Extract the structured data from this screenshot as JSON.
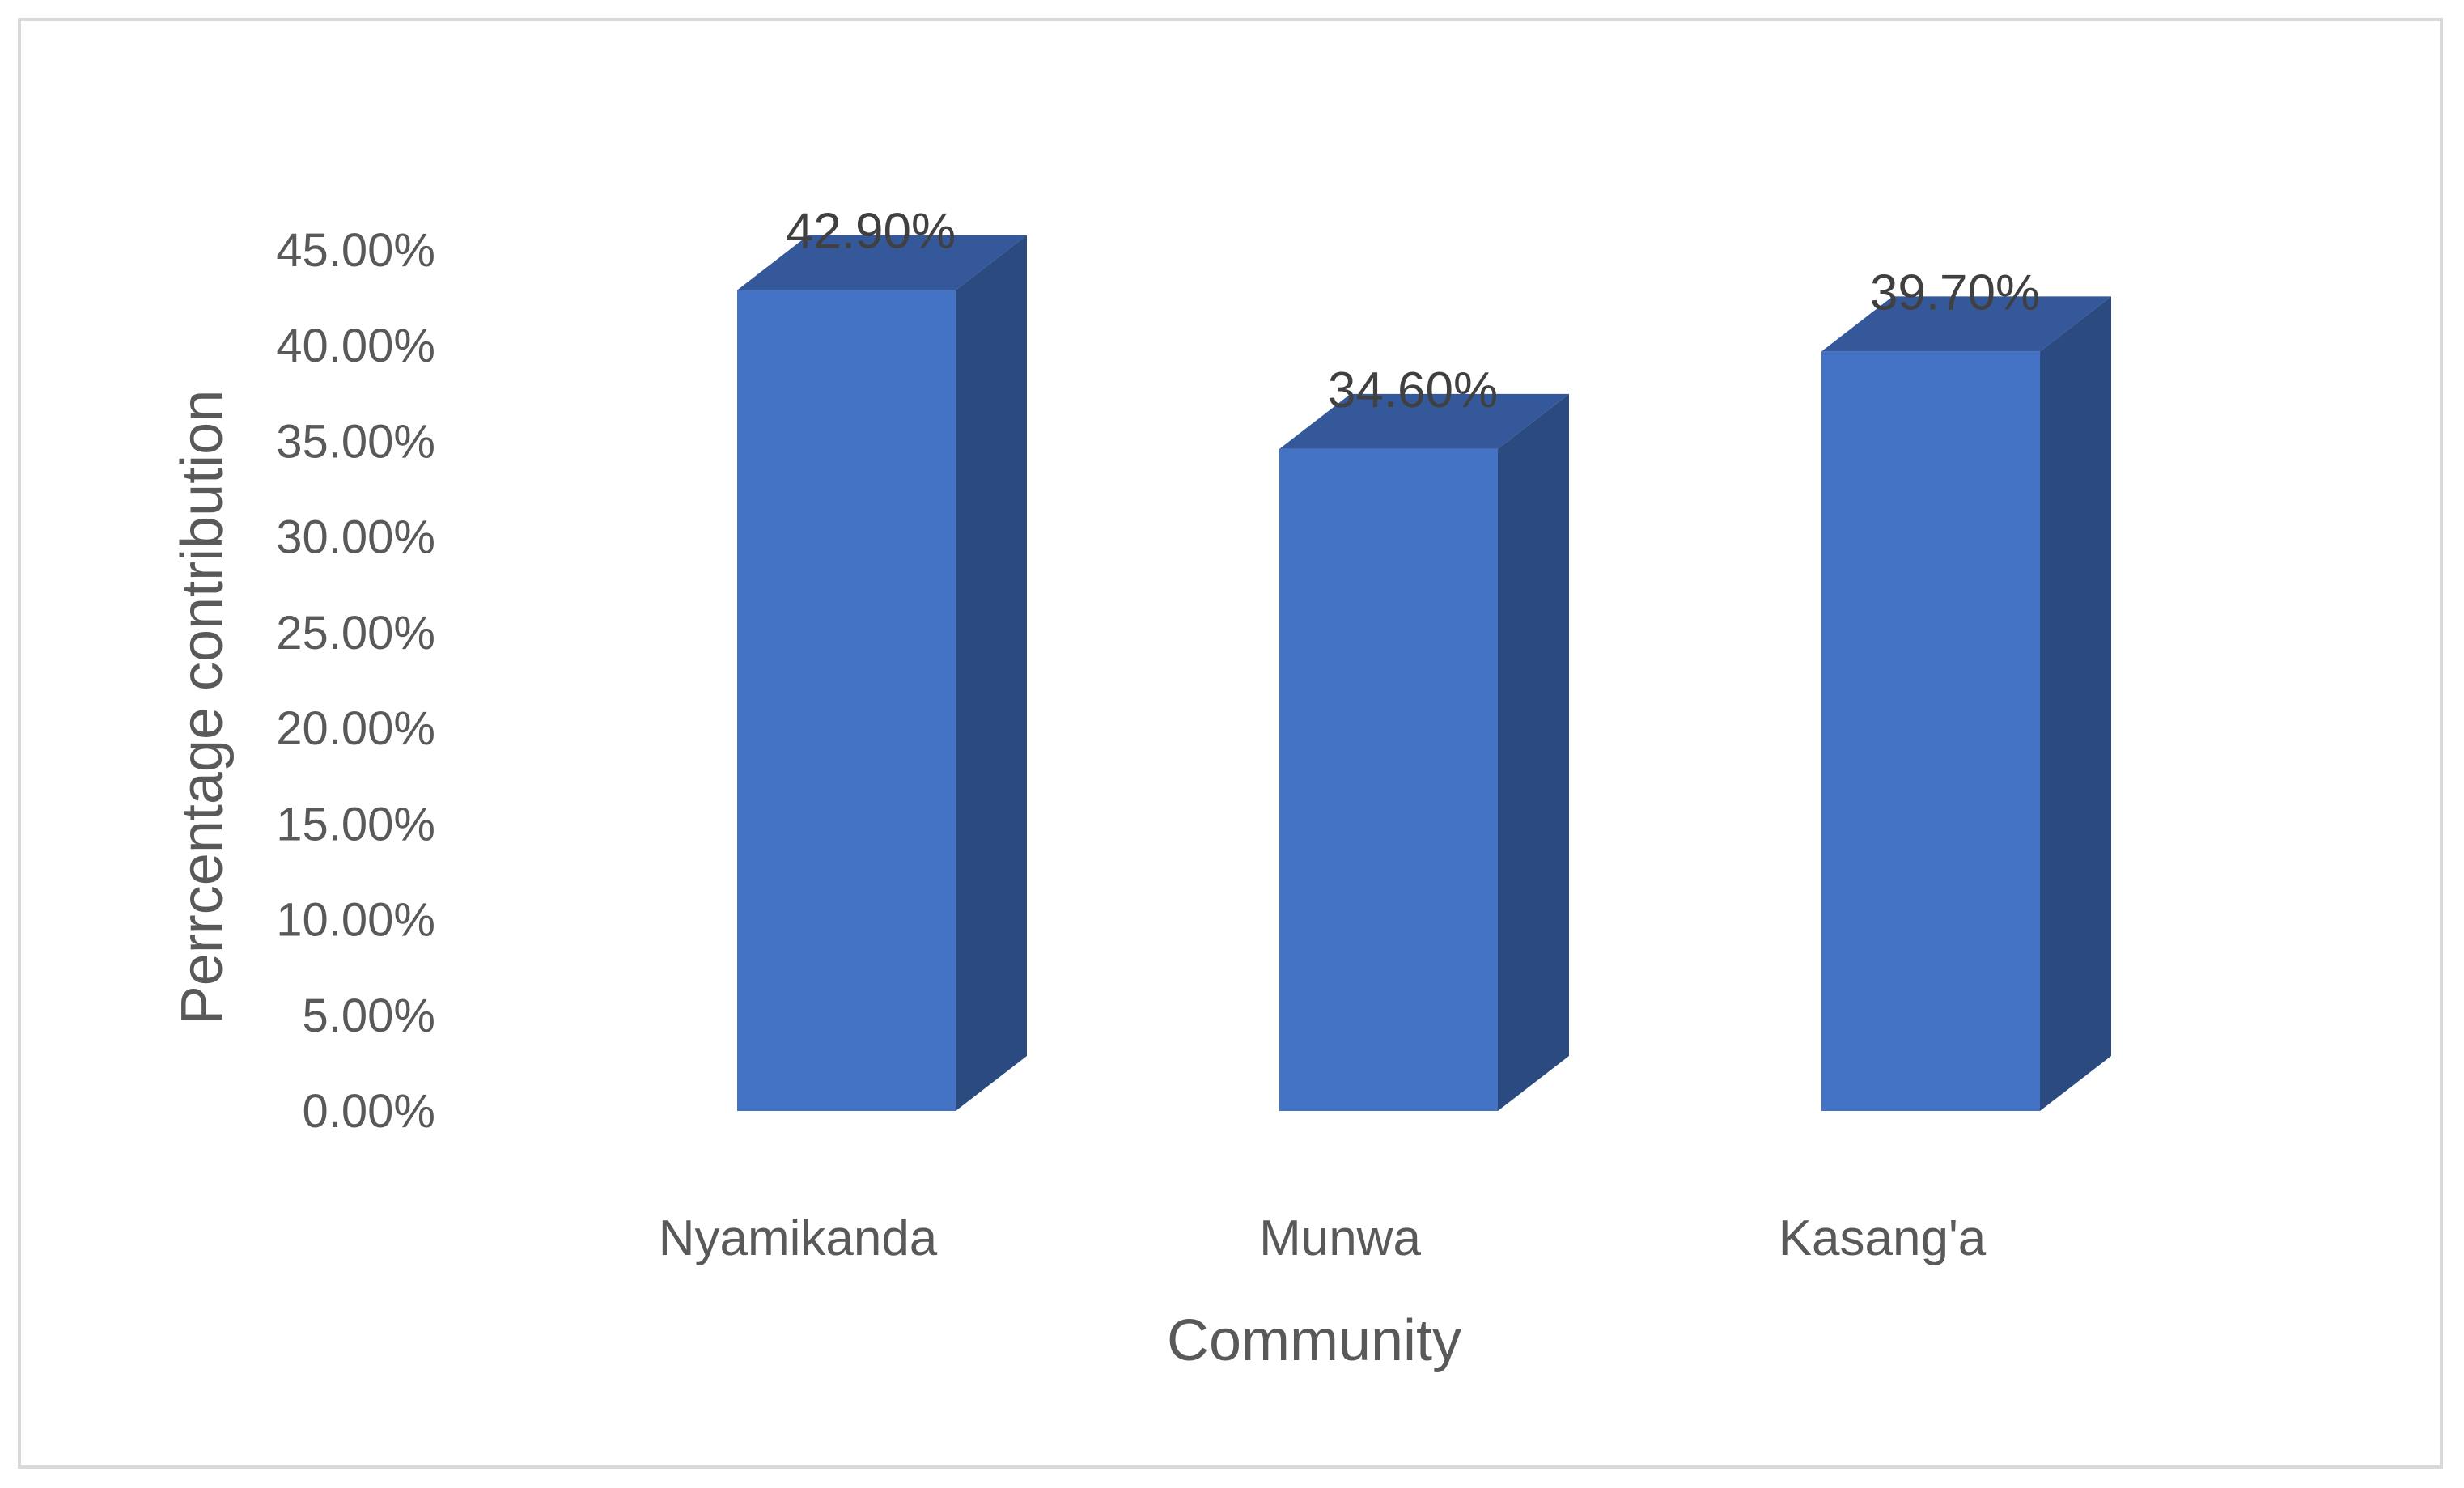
{
  "chart_data": {
    "type": "bar",
    "style": "3d-column",
    "categories": [
      "Nyamikanda",
      "Munwa",
      "Kasang'a"
    ],
    "values": [
      42.9,
      34.6,
      39.7
    ],
    "data_labels": [
      "42.90%",
      "34.60%",
      "39.70%"
    ],
    "title": "",
    "xlabel": "Community",
    "ylabel": "Perrcentage contribution",
    "ylim": [
      0,
      45
    ],
    "yticks": [
      "0.00%",
      "5.00%",
      "10.00%",
      "15.00%",
      "20.00%",
      "25.00%",
      "30.00%",
      "35.00%",
      "40.00%",
      "45.00%"
    ],
    "grid": false,
    "legend": "none",
    "colors": {
      "bar_front": "#4472c4",
      "bar_side": "#2a4a80",
      "bar_top": "#34589a",
      "text": "#595959",
      "border": "#d9d9d9"
    }
  }
}
